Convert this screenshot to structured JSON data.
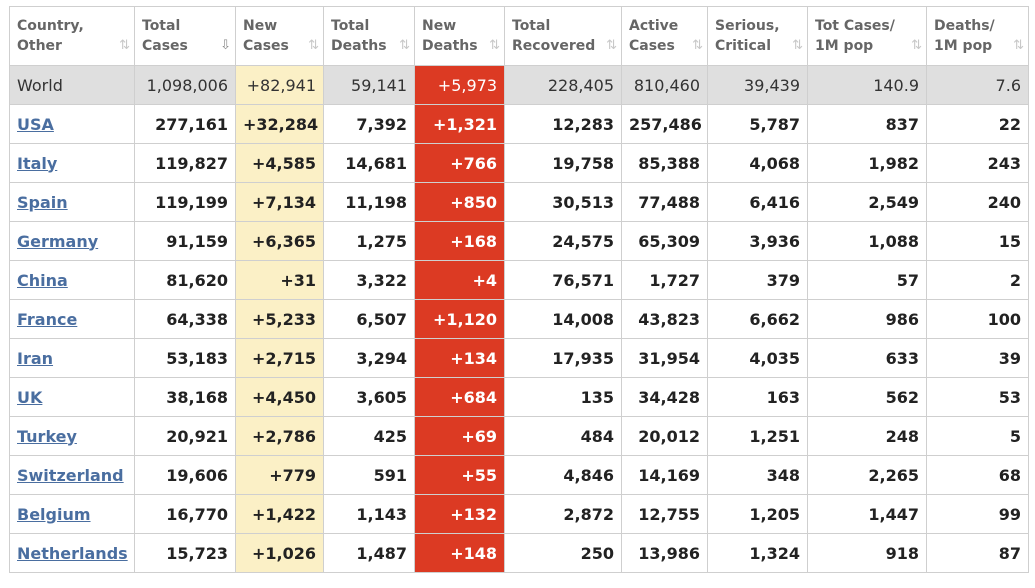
{
  "columns": [
    {
      "line1": "Country,",
      "line2": "Other"
    },
    {
      "line1": "Total",
      "line2": "Cases"
    },
    {
      "line1": "New",
      "line2": "Cases"
    },
    {
      "line1": "Total",
      "line2": "Deaths"
    },
    {
      "line1": "New",
      "line2": "Deaths"
    },
    {
      "line1": "Total",
      "line2": "Recovered"
    },
    {
      "line1": "Active",
      "line2": "Cases"
    },
    {
      "line1": "Serious,",
      "line2": "Critical"
    },
    {
      "line1": "Tot Cases/",
      "line2": "1M pop"
    },
    {
      "line1": "Deaths/",
      "line2": "1M pop"
    }
  ],
  "world": {
    "country": "World",
    "total_cases": "1,098,006",
    "new_cases": "+82,941",
    "total_deaths": "59,141",
    "new_deaths": "+5,973",
    "total_recovered": "228,405",
    "active_cases": "810,460",
    "serious_critical": "39,439",
    "tot_cases_per_1m": "140.9",
    "deaths_per_1m": "7.6"
  },
  "rows": [
    {
      "country": "USA",
      "total_cases": "277,161",
      "new_cases": "+32,284",
      "total_deaths": "7,392",
      "new_deaths": "+1,321",
      "total_recovered": "12,283",
      "active_cases": "257,486",
      "serious_critical": "5,787",
      "tot_cases_per_1m": "837",
      "deaths_per_1m": "22"
    },
    {
      "country": "Italy",
      "total_cases": "119,827",
      "new_cases": "+4,585",
      "total_deaths": "14,681",
      "new_deaths": "+766",
      "total_recovered": "19,758",
      "active_cases": "85,388",
      "serious_critical": "4,068",
      "tot_cases_per_1m": "1,982",
      "deaths_per_1m": "243"
    },
    {
      "country": "Spain",
      "total_cases": "119,199",
      "new_cases": "+7,134",
      "total_deaths": "11,198",
      "new_deaths": "+850",
      "total_recovered": "30,513",
      "active_cases": "77,488",
      "serious_critical": "6,416",
      "tot_cases_per_1m": "2,549",
      "deaths_per_1m": "240"
    },
    {
      "country": "Germany",
      "total_cases": "91,159",
      "new_cases": "+6,365",
      "total_deaths": "1,275",
      "new_deaths": "+168",
      "total_recovered": "24,575",
      "active_cases": "65,309",
      "serious_critical": "3,936",
      "tot_cases_per_1m": "1,088",
      "deaths_per_1m": "15"
    },
    {
      "country": "China",
      "total_cases": "81,620",
      "new_cases": "+31",
      "total_deaths": "3,322",
      "new_deaths": "+4",
      "total_recovered": "76,571",
      "active_cases": "1,727",
      "serious_critical": "379",
      "tot_cases_per_1m": "57",
      "deaths_per_1m": "2"
    },
    {
      "country": "France",
      "total_cases": "64,338",
      "new_cases": "+5,233",
      "total_deaths": "6,507",
      "new_deaths": "+1,120",
      "total_recovered": "14,008",
      "active_cases": "43,823",
      "serious_critical": "6,662",
      "tot_cases_per_1m": "986",
      "deaths_per_1m": "100"
    },
    {
      "country": "Iran",
      "total_cases": "53,183",
      "new_cases": "+2,715",
      "total_deaths": "3,294",
      "new_deaths": "+134",
      "total_recovered": "17,935",
      "active_cases": "31,954",
      "serious_critical": "4,035",
      "tot_cases_per_1m": "633",
      "deaths_per_1m": "39"
    },
    {
      "country": "UK",
      "total_cases": "38,168",
      "new_cases": "+4,450",
      "total_deaths": "3,605",
      "new_deaths": "+684",
      "total_recovered": "135",
      "active_cases": "34,428",
      "serious_critical": "163",
      "tot_cases_per_1m": "562",
      "deaths_per_1m": "53"
    },
    {
      "country": "Turkey",
      "total_cases": "20,921",
      "new_cases": "+2,786",
      "total_deaths": "425",
      "new_deaths": "+69",
      "total_recovered": "484",
      "active_cases": "20,012",
      "serious_critical": "1,251",
      "tot_cases_per_1m": "248",
      "deaths_per_1m": "5"
    },
    {
      "country": "Switzerland",
      "total_cases": "19,606",
      "new_cases": "+779",
      "total_deaths": "591",
      "new_deaths": "+55",
      "total_recovered": "4,846",
      "active_cases": "14,169",
      "serious_critical": "348",
      "tot_cases_per_1m": "2,265",
      "deaths_per_1m": "68"
    },
    {
      "country": "Belgium",
      "total_cases": "16,770",
      "new_cases": "+1,422",
      "total_deaths": "1,143",
      "new_deaths": "+132",
      "total_recovered": "2,872",
      "active_cases": "12,755",
      "serious_critical": "1,205",
      "tot_cases_per_1m": "1,447",
      "deaths_per_1m": "99"
    },
    {
      "country": "Netherlands",
      "total_cases": "15,723",
      "new_cases": "+1,026",
      "total_deaths": "1,487",
      "new_deaths": "+148",
      "total_recovered": "250",
      "active_cases": "13,986",
      "serious_critical": "1,324",
      "tot_cases_per_1m": "918",
      "deaths_per_1m": "87"
    }
  ],
  "colors": {
    "new_cases_bg": "#fbf0c6",
    "new_deaths_bg": "#dc3a23",
    "world_row_bg": "#dfdfdf",
    "link": "#4a6ea0"
  },
  "icons": {
    "sort_default": "sort-icon",
    "sort_active": "sort-descending-icon"
  }
}
